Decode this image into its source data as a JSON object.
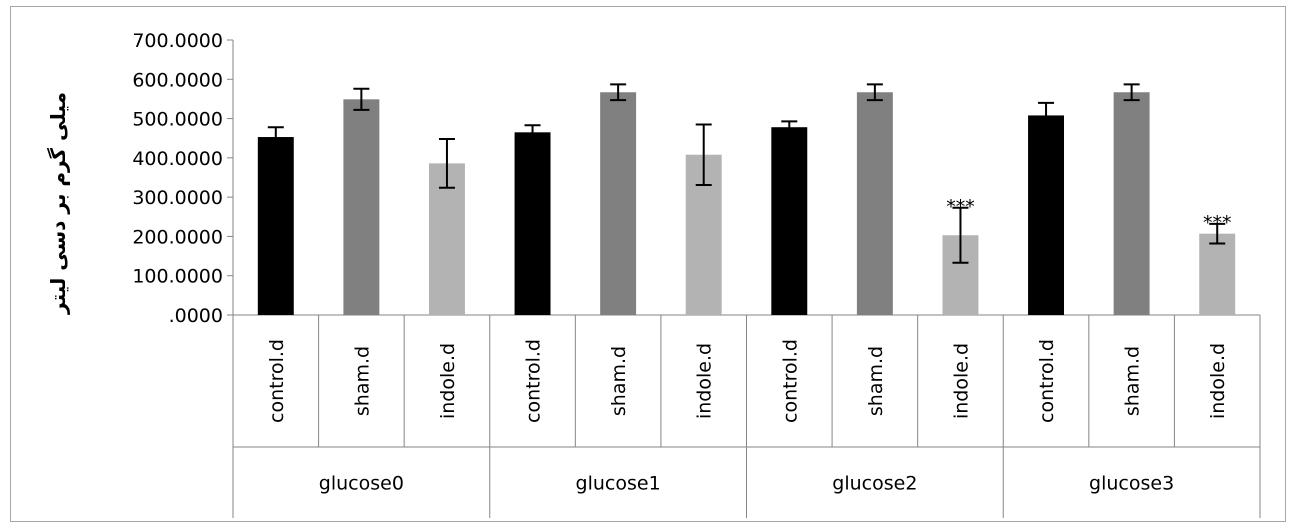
{
  "chart_data": {
    "type": "bar",
    "title": "",
    "xlabel": "",
    "ylabel": "میلی گرم بر دسی لیتر",
    "ylim": [
      0,
      700
    ],
    "yticks": [
      ".0000",
      "100.0000",
      "200.0000",
      "300.0000",
      "400.0000",
      "500.0000",
      "600.0000",
      "700.0000"
    ],
    "grid": false,
    "legend": "none",
    "groups": [
      "glucose0",
      "glucose1",
      "glucose2",
      "glucose3"
    ],
    "categories": [
      "control.d",
      "sham.d",
      "indole.d"
    ],
    "colors": [
      "#000000",
      "#808080",
      "#b3b3b3"
    ],
    "values": [
      [
        453,
        549,
        386
      ],
      [
        465,
        567,
        408
      ],
      [
        478,
        567,
        203
      ],
      [
        508,
        567,
        207
      ]
    ],
    "errors": [
      [
        25,
        27,
        62
      ],
      [
        18,
        20,
        77
      ],
      [
        15,
        20,
        70
      ],
      [
        32,
        20,
        25
      ]
    ],
    "annotations": [
      {
        "group": 2,
        "category": 2,
        "text": "***"
      },
      {
        "group": 3,
        "category": 2,
        "text": "***"
      }
    ]
  }
}
